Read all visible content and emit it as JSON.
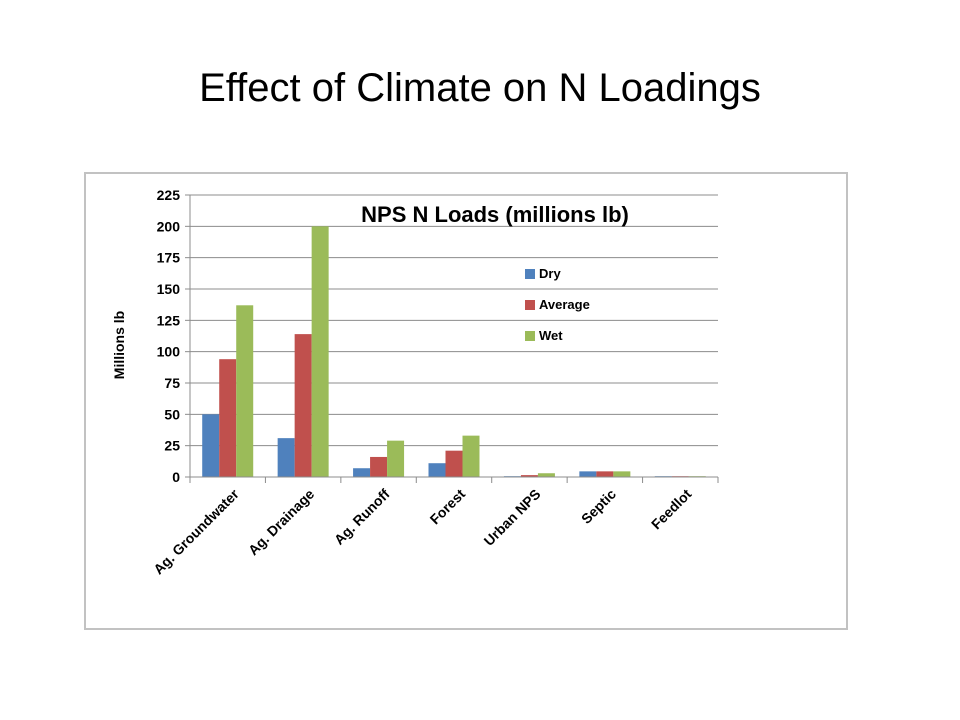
{
  "slide": {
    "title": "Effect of Climate on N Loadings"
  },
  "chart_data": {
    "type": "bar",
    "title": "NPS N Loads (millions lb)",
    "xlabel": "",
    "ylabel": "Millions lb",
    "ylim": [
      0,
      225
    ],
    "yticks": [
      0,
      25,
      50,
      75,
      100,
      125,
      150,
      175,
      200,
      225
    ],
    "grid": true,
    "legend_position": "right",
    "categories": [
      "Ag. Groundwater",
      "Ag. Drainage",
      "Ag. Runoff",
      "Forest",
      "Urban NPS",
      "Septic",
      "Feedlot"
    ],
    "series": [
      {
        "name": "Dry",
        "color": "#4f81bd",
        "values": [
          50,
          31,
          7,
          11,
          0.5,
          4.5,
          0.2
        ]
      },
      {
        "name": "Average",
        "color": "#c0504d",
        "values": [
          94,
          114,
          16,
          21,
          1.5,
          4.5,
          0.2
        ]
      },
      {
        "name": "Wet",
        "color": "#9bbb59",
        "values": [
          137,
          200,
          29,
          33,
          3,
          4.5,
          0.3
        ]
      }
    ]
  }
}
